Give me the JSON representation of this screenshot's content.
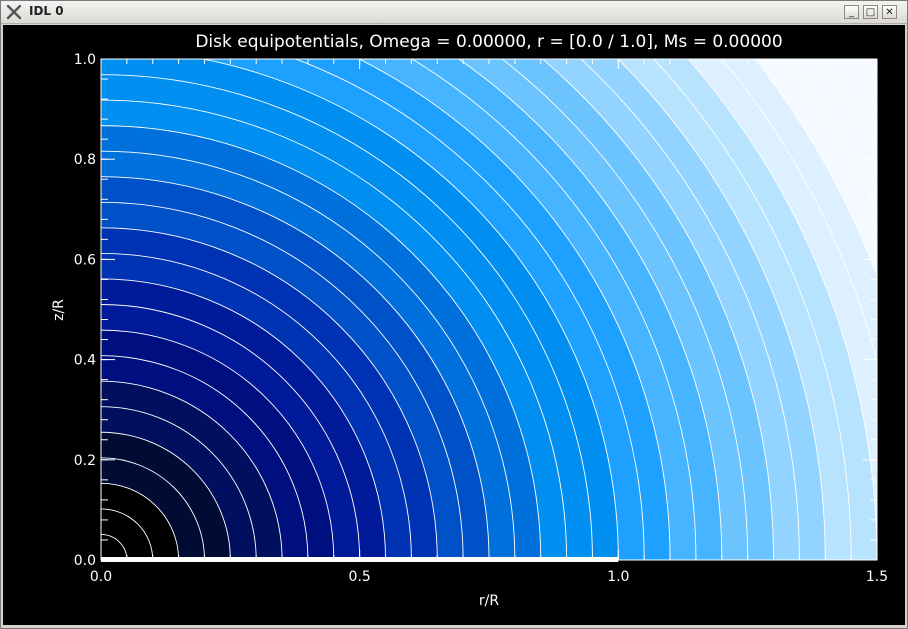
{
  "window": {
    "title": "IDL 0",
    "app_icon": "x-icon",
    "buttons": {
      "minimize": "_",
      "maximize": "□",
      "close": "✕"
    }
  },
  "chart_data": {
    "type": "heatmap",
    "title": "Disk equipotentials, Omega =  0.00000, r = [0.0 / 1.0], Ms =  0.00000",
    "xlabel": "r/R",
    "ylabel": "z/R",
    "xlim": [
      0.0,
      1.5
    ],
    "ylim": [
      0.0,
      1.0
    ],
    "x_ticks": [
      "0.0",
      "0.5",
      "1.0",
      "1.5"
    ],
    "y_ticks": [
      "0.0",
      "0.2",
      "0.4",
      "0.6",
      "0.8",
      "1.0"
    ],
    "contour_levels": [
      0.05,
      0.1,
      0.15,
      0.2,
      0.25,
      0.3,
      0.35,
      0.4,
      0.45,
      0.5,
      0.55,
      0.6,
      0.65,
      0.7,
      0.75,
      0.8,
      0.85,
      0.9,
      0.95,
      1.0,
      1.05,
      1.1,
      1.15,
      1.2,
      1.25,
      1.3,
      1.35,
      1.4,
      1.45,
      1.5,
      1.55,
      1.6,
      1.65,
      1.7
    ],
    "fill_colors": [
      "#000000",
      "#000c33",
      "#00105e",
      "#000f80",
      "#001a99",
      "#0033b3",
      "#0050c8",
      "#0070dd",
      "#008ff0",
      "#1ea0ff",
      "#47b4ff",
      "#6cc4ff",
      "#92d4ff",
      "#b8e3ff",
      "#dcf0ff",
      "#f4faff"
    ],
    "disk_radius": 1.0
  }
}
